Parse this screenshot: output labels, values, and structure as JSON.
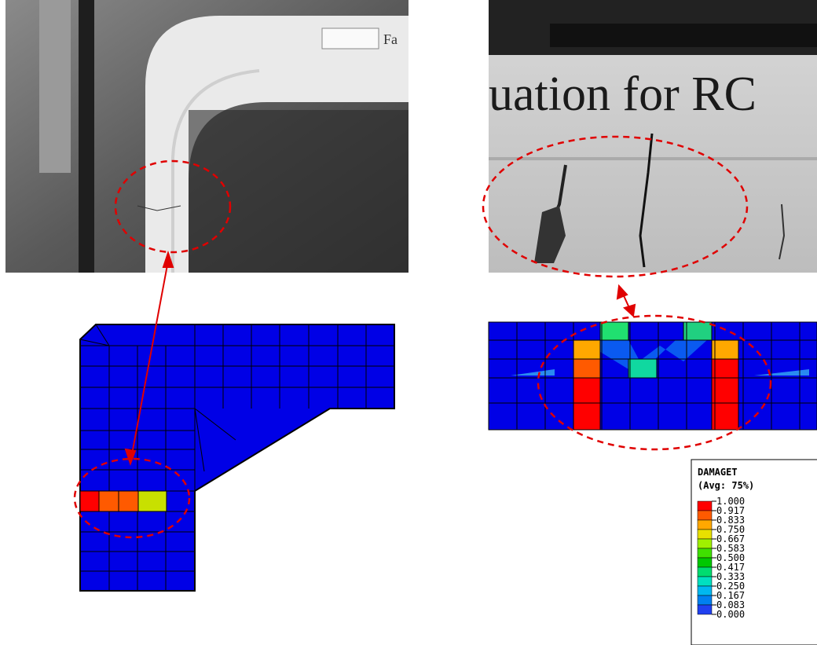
{
  "left_photo": {
    "sign_text": "Fa"
  },
  "right_photo": {
    "sign_text": "uation for RC"
  },
  "legend": {
    "title": "DAMAGET",
    "subtitle": "(Avg: 75%)",
    "levels": [
      "1.000",
      "0.917",
      "0.833",
      "0.750",
      "0.667",
      "0.583",
      "0.500",
      "0.417",
      "0.333",
      "0.250",
      "0.167",
      "0.083",
      "0.000"
    ]
  }
}
